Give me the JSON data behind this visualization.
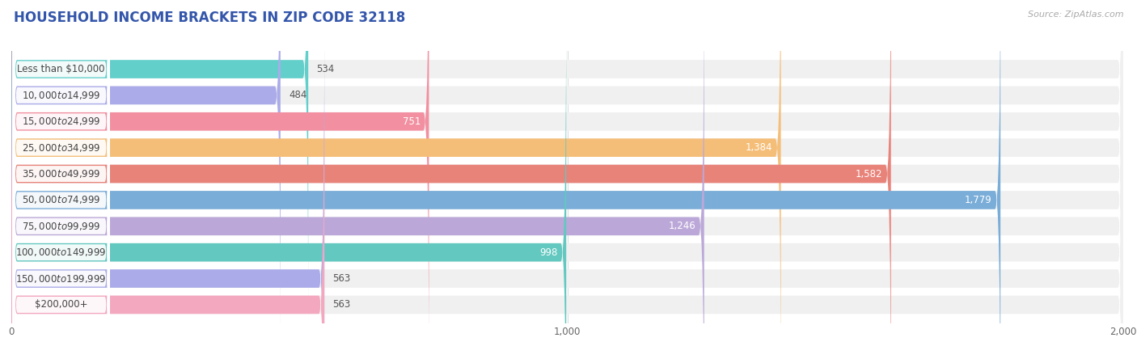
{
  "title": "HOUSEHOLD INCOME BRACKETS IN ZIP CODE 32118",
  "source": "Source: ZipAtlas.com",
  "categories": [
    "Less than $10,000",
    "$10,000 to $14,999",
    "$15,000 to $24,999",
    "$25,000 to $34,999",
    "$35,000 to $49,999",
    "$50,000 to $74,999",
    "$75,000 to $99,999",
    "$100,000 to $149,999",
    "$150,000 to $199,999",
    "$200,000+"
  ],
  "values": [
    534,
    484,
    751,
    1384,
    1582,
    1779,
    1246,
    998,
    563,
    563
  ],
  "bar_colors": [
    "#62CFCB",
    "#ABABEA",
    "#F28FA0",
    "#F5BE78",
    "#E8837A",
    "#7AADD8",
    "#BBA8D8",
    "#62C8C0",
    "#ABABEA",
    "#F4A8C0"
  ],
  "value_inside_threshold": 600,
  "xlim": [
    0,
    2000
  ],
  "xticks": [
    0,
    1000,
    2000
  ],
  "background_color": "#ffffff",
  "bar_bg_color": "#f0f0f0",
  "label_bg_color": "#ffffff",
  "grid_color": "#dddddd",
  "title_color": "#3355aa",
  "title_fontsize": 12,
  "label_fontsize": 8.5,
  "value_fontsize": 8.5,
  "source_fontsize": 8,
  "source_color": "#aaaaaa"
}
